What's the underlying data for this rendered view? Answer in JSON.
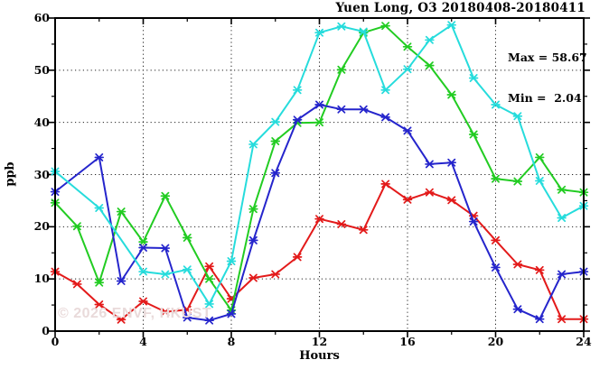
{
  "chart_data": {
    "type": "line",
    "title": "Yuen Long, O3 20180408-20180411",
    "xlabel": "Hours",
    "ylabel": "ppb",
    "xlim": [
      0,
      24
    ],
    "ylim": [
      0,
      60
    ],
    "x_ticks": [
      0,
      4,
      8,
      12,
      16,
      20,
      24
    ],
    "y_ticks": [
      0,
      10,
      20,
      30,
      40,
      50,
      60
    ],
    "x_minor_tick_step": 2,
    "y_minor_tick_step": 5,
    "grid": "dotted lines at major ticks (x: every 4 h, y: every 10 ppb)",
    "legend_position": "none",
    "stat_max": 58.67,
    "stat_min": 2.04,
    "x": [
      0,
      1,
      2,
      3,
      4,
      5,
      6,
      7,
      8,
      9,
      10,
      11,
      12,
      13,
      14,
      15,
      16,
      17,
      18,
      19,
      20,
      21,
      22,
      23,
      24
    ],
    "series": [
      {
        "name": "series-red",
        "color": "#e31a1a",
        "values": [
          11.4,
          9.0,
          5.1,
          2.2,
          5.7,
          3.7,
          4.1,
          12.4,
          6.2,
          10.2,
          10.9,
          14.2,
          21.5,
          20.5,
          19.4,
          28.2,
          25.2,
          26.6,
          25.1,
          22.1,
          17.4,
          12.8,
          11.7,
          2.3,
          2.3
        ]
      },
      {
        "name": "series-green",
        "color": "#22cc22",
        "values": [
          24.6,
          20.1,
          9.3,
          22.9,
          17.1,
          25.9,
          17.9,
          10.0,
          4.0,
          23.4,
          36.4,
          39.9,
          40.0,
          50.1,
          57.2,
          58.5,
          54.5,
          50.9,
          45.3,
          37.7,
          29.2,
          28.7,
          33.3,
          27.1,
          26.6
        ]
      },
      {
        "name": "series-blue",
        "color": "#2525cc",
        "values": [
          26.7,
          null,
          33.3,
          9.6,
          16.0,
          15.9,
          2.6,
          2.04,
          3.3,
          17.4,
          30.3,
          40.5,
          43.4,
          42.5,
          42.5,
          41.0,
          38.4,
          32.0,
          32.3,
          21.0,
          12.2,
          4.2,
          2.3,
          10.9,
          11.4
        ]
      },
      {
        "name": "series-cyan",
        "color": "#26dcdc",
        "values": [
          30.6,
          null,
          23.6,
          null,
          11.4,
          10.9,
          11.8,
          5.2,
          13.4,
          35.8,
          40.1,
          46.2,
          57.2,
          58.4,
          57.4,
          46.2,
          50.2,
          55.8,
          58.67,
          48.5,
          43.4,
          41.2,
          28.8,
          21.7,
          24.0
        ]
      }
    ]
  },
  "annotation": {
    "max_line": "Max = 58.67",
    "min_line": "Min =  2.04"
  },
  "watermark": "© 2026 ENVF, HKUST"
}
